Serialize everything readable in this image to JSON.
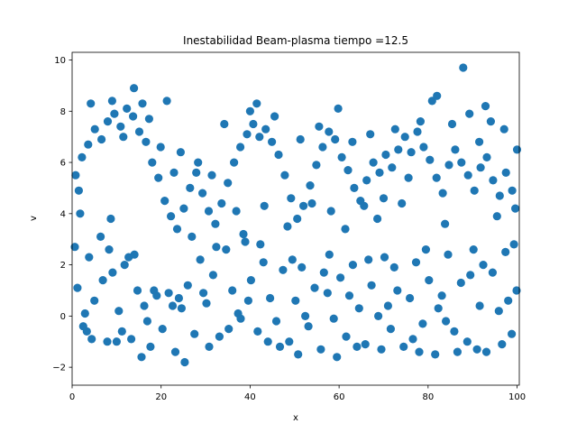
{
  "chart_data": {
    "type": "scatter",
    "title": "Inestabilidad Beam-plasma  tiempo =12.5",
    "xlabel": "x",
    "ylabel": "v",
    "xlim": [
      0,
      100.5
    ],
    "ylim": [
      -2.7,
      10.3
    ],
    "xticks": [
      0,
      20,
      40,
      60,
      80,
      100
    ],
    "yticks": [
      -2,
      0,
      2,
      4,
      6,
      8,
      10
    ],
    "grid": false,
    "marker_color": "#1f77b4",
    "series": [
      {
        "points": [
          [
            1.2,
            1.1
          ],
          [
            2.5,
            -0.4
          ],
          [
            3.8,
            2.3
          ],
          [
            5.0,
            0.6
          ],
          [
            6.4,
            3.1
          ],
          [
            7.9,
            -1.0
          ],
          [
            9.1,
            1.7
          ],
          [
            10.5,
            0.2
          ],
          [
            11.8,
            2.0
          ],
          [
            13.3,
            -0.9
          ],
          [
            14.7,
            1.0
          ],
          [
            16.2,
            0.4
          ],
          [
            17.6,
            -1.2
          ],
          [
            19.0,
            0.8
          ],
          [
            20.3,
            -0.5
          ],
          [
            21.7,
            0.9
          ],
          [
            23.2,
            -1.4
          ],
          [
            24.6,
            0.3
          ],
          [
            26.0,
            1.2
          ],
          [
            27.5,
            -0.7
          ],
          [
            28.8,
            2.2
          ],
          [
            30.2,
            0.5
          ],
          [
            31.7,
            1.6
          ],
          [
            33.1,
            -0.8
          ],
          [
            34.6,
            2.6
          ],
          [
            36.0,
            1.0
          ],
          [
            37.3,
            0.1
          ],
          [
            38.9,
            2.9
          ],
          [
            40.2,
            1.4
          ],
          [
            41.7,
            -0.6
          ],
          [
            43.0,
            2.1
          ],
          [
            44.5,
            0.7
          ],
          [
            45.9,
            -0.2
          ],
          [
            47.4,
            1.8
          ],
          [
            48.8,
            -1.0
          ],
          [
            50.2,
            0.6
          ],
          [
            51.6,
            1.9
          ],
          [
            53.1,
            -0.4
          ],
          [
            54.5,
            1.1
          ],
          [
            55.9,
            -1.3
          ],
          [
            57.4,
            0.9
          ],
          [
            58.8,
            -0.1
          ],
          [
            60.3,
            1.5
          ],
          [
            61.6,
            -0.8
          ],
          [
            63.1,
            2.0
          ],
          [
            64.5,
            0.3
          ],
          [
            65.9,
            -1.1
          ],
          [
            67.3,
            1.2
          ],
          [
            68.8,
            0.0
          ],
          [
            70.2,
            2.3
          ],
          [
            71.6,
            -0.5
          ],
          [
            73.1,
            1.0
          ],
          [
            74.5,
            -1.2
          ],
          [
            75.9,
            0.7
          ],
          [
            77.3,
            2.1
          ],
          [
            78.8,
            -0.3
          ],
          [
            80.2,
            1.4
          ],
          [
            81.6,
            -1.5
          ],
          [
            83.1,
            0.8
          ],
          [
            84.5,
            2.4
          ],
          [
            85.9,
            -0.6
          ],
          [
            87.4,
            1.3
          ],
          [
            88.8,
            -1.0
          ],
          [
            90.2,
            2.6
          ],
          [
            91.6,
            0.4
          ],
          [
            93.1,
            -1.4
          ],
          [
            94.5,
            1.7
          ],
          [
            95.9,
            0.2
          ],
          [
            97.4,
            2.5
          ],
          [
            98.8,
            -0.7
          ],
          [
            99.9,
            1.0
          ],
          [
            0.6,
            2.7
          ],
          [
            2.9,
            0.1
          ],
          [
            4.4,
            -0.9
          ],
          [
            6.9,
            1.4
          ],
          [
            8.3,
            2.6
          ],
          [
            11.2,
            -0.6
          ],
          [
            12.7,
            2.3
          ],
          [
            15.6,
            -1.6
          ],
          [
            18.4,
            1.0
          ],
          [
            22.6,
            0.4
          ],
          [
            25.3,
            -1.8
          ],
          [
            29.5,
            0.9
          ],
          [
            32.4,
            2.7
          ],
          [
            35.2,
            -0.5
          ],
          [
            39.6,
            0.6
          ],
          [
            42.3,
            2.8
          ],
          [
            46.7,
            -1.2
          ],
          [
            49.5,
            2.2
          ],
          [
            52.4,
            0.0
          ],
          [
            56.6,
            1.7
          ],
          [
            59.5,
            -1.6
          ],
          [
            62.3,
            0.8
          ],
          [
            66.6,
            2.2
          ],
          [
            69.5,
            -1.3
          ],
          [
            72.4,
            1.9
          ],
          [
            76.6,
            -0.9
          ],
          [
            79.5,
            2.6
          ],
          [
            82.3,
            0.3
          ],
          [
            86.6,
            -1.4
          ],
          [
            89.5,
            1.6
          ],
          [
            92.4,
            2.0
          ],
          [
            96.6,
            -1.1
          ],
          [
            99.3,
            2.8
          ],
          [
            1.8,
            4.0
          ],
          [
            3.3,
            -0.6
          ],
          [
            8.7,
            3.8
          ],
          [
            10.0,
            -1.0
          ],
          [
            14.0,
            2.4
          ],
          [
            16.9,
            -0.2
          ],
          [
            24.0,
            0.7
          ],
          [
            30.8,
            -1.2
          ],
          [
            37.9,
            -0.1
          ],
          [
            44.0,
            -1.0
          ],
          [
            50.8,
            -1.5
          ],
          [
            57.8,
            2.4
          ],
          [
            64.0,
            -1.2
          ],
          [
            71.0,
            0.4
          ],
          [
            78.0,
            -1.4
          ],
          [
            84.0,
            -0.2
          ],
          [
            91.0,
            -1.3
          ],
          [
            98.0,
            0.6
          ],
          [
            0.8,
            5.5
          ],
          [
            2.2,
            6.2
          ],
          [
            3.6,
            6.7
          ],
          [
            5.1,
            7.3
          ],
          [
            6.6,
            6.9
          ],
          [
            8.0,
            7.6
          ],
          [
            9.5,
            7.9
          ],
          [
            10.9,
            7.4
          ],
          [
            12.3,
            8.1
          ],
          [
            13.7,
            7.8
          ],
          [
            15.1,
            7.2
          ],
          [
            16.6,
            6.8
          ],
          [
            18.0,
            6.0
          ],
          [
            19.4,
            5.4
          ],
          [
            20.8,
            4.5
          ],
          [
            22.2,
            3.9
          ],
          [
            23.6,
            3.4
          ],
          [
            25.1,
            4.2
          ],
          [
            26.5,
            5.0
          ],
          [
            27.9,
            5.6
          ],
          [
            29.3,
            4.8
          ],
          [
            30.7,
            4.1
          ],
          [
            32.2,
            3.6
          ],
          [
            33.6,
            4.4
          ],
          [
            35.0,
            5.2
          ],
          [
            36.4,
            6.0
          ],
          [
            37.8,
            6.6
          ],
          [
            39.3,
            7.1
          ],
          [
            40.7,
            7.5
          ],
          [
            42.1,
            7.0
          ],
          [
            43.5,
            7.3
          ],
          [
            44.9,
            6.8
          ],
          [
            46.4,
            6.3
          ],
          [
            47.8,
            5.5
          ],
          [
            49.2,
            4.6
          ],
          [
            50.6,
            3.8
          ],
          [
            52.0,
            4.3
          ],
          [
            53.5,
            5.1
          ],
          [
            54.9,
            5.9
          ],
          [
            56.3,
            6.6
          ],
          [
            57.7,
            7.2
          ],
          [
            59.1,
            6.9
          ],
          [
            60.6,
            6.2
          ],
          [
            62.0,
            5.7
          ],
          [
            63.4,
            5.0
          ],
          [
            64.8,
            4.5
          ],
          [
            66.2,
            5.3
          ],
          [
            67.7,
            6.0
          ],
          [
            69.1,
            5.6
          ],
          [
            70.5,
            6.3
          ],
          [
            71.9,
            5.8
          ],
          [
            73.3,
            6.5
          ],
          [
            74.8,
            7.0
          ],
          [
            76.2,
            6.4
          ],
          [
            77.6,
            7.2
          ],
          [
            79.0,
            6.6
          ],
          [
            80.4,
            6.1
          ],
          [
            81.9,
            5.4
          ],
          [
            83.3,
            4.8
          ],
          [
            84.7,
            5.9
          ],
          [
            86.1,
            6.5
          ],
          [
            87.5,
            6.0
          ],
          [
            89.0,
            5.5
          ],
          [
            90.4,
            4.9
          ],
          [
            91.8,
            5.8
          ],
          [
            93.2,
            6.2
          ],
          [
            94.6,
            5.3
          ],
          [
            96.1,
            4.7
          ],
          [
            97.5,
            5.6
          ],
          [
            98.9,
            4.9
          ],
          [
            100.0,
            6.5
          ],
          [
            1.5,
            4.9
          ],
          [
            4.2,
            8.3
          ],
          [
            9.0,
            8.4
          ],
          [
            11.5,
            7.0
          ],
          [
            13.9,
            8.9
          ],
          [
            15.8,
            8.3
          ],
          [
            17.3,
            7.7
          ],
          [
            19.9,
            6.6
          ],
          [
            21.3,
            8.4
          ],
          [
            22.9,
            5.6
          ],
          [
            24.4,
            6.4
          ],
          [
            26.9,
            3.1
          ],
          [
            28.3,
            6.0
          ],
          [
            31.4,
            5.5
          ],
          [
            34.2,
            7.5
          ],
          [
            36.9,
            4.1
          ],
          [
            38.5,
            3.2
          ],
          [
            40.0,
            8.0
          ],
          [
            41.5,
            8.3
          ],
          [
            43.2,
            4.3
          ],
          [
            45.5,
            7.8
          ],
          [
            48.4,
            3.5
          ],
          [
            51.3,
            6.9
          ],
          [
            53.9,
            4.4
          ],
          [
            55.5,
            7.4
          ],
          [
            58.2,
            4.1
          ],
          [
            59.8,
            8.1
          ],
          [
            61.4,
            3.4
          ],
          [
            63.0,
            6.8
          ],
          [
            65.6,
            4.3
          ],
          [
            67.0,
            7.1
          ],
          [
            68.6,
            3.8
          ],
          [
            70.0,
            4.6
          ],
          [
            72.6,
            7.3
          ],
          [
            74.1,
            4.4
          ],
          [
            75.6,
            5.4
          ],
          [
            78.3,
            7.6
          ],
          [
            80.9,
            8.4
          ],
          [
            82.0,
            8.6
          ],
          [
            83.8,
            3.6
          ],
          [
            85.4,
            7.5
          ],
          [
            87.9,
            9.7
          ],
          [
            89.3,
            7.9
          ],
          [
            91.5,
            6.8
          ],
          [
            92.9,
            8.2
          ],
          [
            94.1,
            7.6
          ],
          [
            95.5,
            3.9
          ],
          [
            97.1,
            7.3
          ],
          [
            99.6,
            4.2
          ]
        ]
      }
    ]
  }
}
